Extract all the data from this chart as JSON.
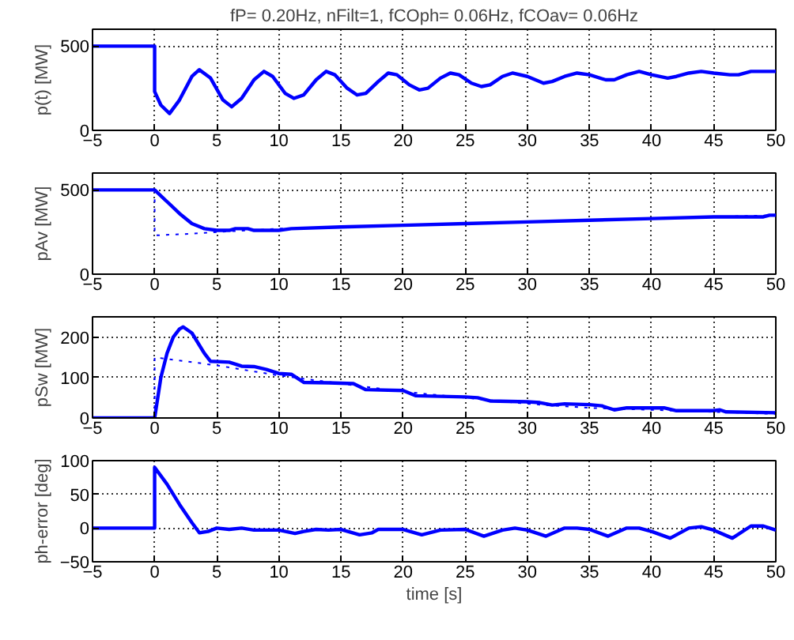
{
  "chart_data": [
    {
      "type": "line",
      "title": "fP= 0.20Hz, nFilt=1, fCOph= 0.06Hz, fCOav= 0.06Hz",
      "ylabel": "p(t) [MW]",
      "xlim": [
        -5,
        50
      ],
      "xticks": [
        -5,
        0,
        5,
        10,
        15,
        20,
        25,
        30,
        35,
        40,
        45,
        50
      ],
      "ylim": [
        0,
        600
      ],
      "yticks": [
        0,
        500
      ],
      "grid": true,
      "series": [
        {
          "color": "#0000ff",
          "line_style": "solid",
          "x": [
            -5,
            0,
            0,
            0.5,
            1.2,
            2,
            3,
            3.6,
            4.5,
            5.5,
            6.2,
            7,
            8,
            8.8,
            9.5,
            10.5,
            11.2,
            12,
            13,
            13.8,
            14.5,
            15.5,
            16.3,
            17,
            18,
            18.8,
            19.5,
            20.5,
            21.3,
            22,
            23,
            23.8,
            24.5,
            25.5,
            26.3,
            27,
            28,
            28.8,
            30,
            31.3,
            32,
            33,
            34,
            35,
            36.3,
            37,
            38,
            39,
            40,
            41.3,
            42,
            43,
            44,
            45,
            46.3,
            47,
            48,
            49,
            50
          ],
          "values": [
            500,
            500,
            230,
            150,
            100,
            180,
            320,
            360,
            310,
            180,
            140,
            190,
            300,
            350,
            320,
            220,
            190,
            210,
            300,
            350,
            330,
            250,
            210,
            220,
            290,
            340,
            330,
            270,
            240,
            250,
            310,
            340,
            330,
            280,
            260,
            270,
            320,
            340,
            320,
            280,
            290,
            320,
            340,
            330,
            300,
            300,
            330,
            350,
            330,
            310,
            320,
            340,
            350,
            340,
            330,
            330,
            350,
            350,
            350
          ]
        }
      ]
    },
    {
      "type": "line",
      "ylabel": "pAv [MW]",
      "xlim": [
        -5,
        50
      ],
      "xticks": [
        -5,
        0,
        5,
        10,
        15,
        20,
        25,
        30,
        35,
        40,
        45,
        50
      ],
      "ylim": [
        0,
        600
      ],
      "yticks": [
        0,
        500
      ],
      "grid": true,
      "series": [
        {
          "color": "#0000ff",
          "line_style": "dotted",
          "x": [
            0,
            0,
            3,
            5,
            10,
            15,
            20,
            25,
            30,
            35,
            40,
            45,
            50
          ],
          "values": [
            500,
            230,
            240,
            250,
            270,
            280,
            290,
            300,
            310,
            320,
            330,
            340,
            350
          ]
        },
        {
          "color": "#0000ff",
          "line_style": "solid",
          "x": [
            -5,
            0,
            1,
            2,
            3,
            4,
            5,
            6,
            6.5,
            7.5,
            8,
            10,
            11,
            15,
            20,
            25,
            30,
            35,
            40,
            45,
            49,
            49.5,
            50
          ],
          "values": [
            500,
            500,
            430,
            360,
            300,
            270,
            260,
            260,
            270,
            270,
            260,
            260,
            270,
            280,
            290,
            300,
            310,
            320,
            330,
            340,
            340,
            350,
            350
          ]
        }
      ]
    },
    {
      "type": "line",
      "ylabel": "pSw [MW]",
      "xlim": [
        -5,
        50
      ],
      "xticks": [
        -5,
        0,
        5,
        10,
        15,
        20,
        25,
        30,
        35,
        40,
        45,
        50
      ],
      "ylim": [
        0,
        250
      ],
      "yticks": [
        0,
        100,
        200
      ],
      "grid": true,
      "series": [
        {
          "color": "#0000ff",
          "line_style": "dotted",
          "x": [
            0,
            0,
            5,
            10,
            15,
            20,
            25,
            30,
            35,
            40,
            45,
            50
          ],
          "values": [
            0,
            150,
            130,
            105,
            85,
            65,
            50,
            35,
            25,
            20,
            15,
            10
          ]
        },
        {
          "color": "#0000ff",
          "line_style": "solid",
          "x": [
            -5,
            0,
            0.5,
            1,
            1.5,
            2,
            2.3,
            3,
            4,
            4.5,
            6,
            7,
            8,
            9,
            10,
            11,
            12,
            14,
            16,
            17,
            20,
            21,
            25,
            26,
            27,
            30,
            31,
            32,
            33,
            35,
            36,
            37,
            38,
            41,
            42,
            45,
            45.5,
            46,
            50
          ],
          "values": [
            0,
            0,
            100,
            160,
            200,
            220,
            225,
            210,
            160,
            140,
            138,
            128,
            127,
            120,
            110,
            108,
            88,
            87,
            85,
            70,
            68,
            55,
            52,
            50,
            42,
            40,
            38,
            32,
            35,
            33,
            30,
            20,
            25,
            25,
            18,
            18,
            20,
            15,
            13
          ]
        }
      ]
    },
    {
      "type": "line",
      "ylabel": "ph-error [deg]",
      "xlabel": "time [s]",
      "xlim": [
        -5,
        50
      ],
      "xticks": [
        -5,
        0,
        5,
        10,
        15,
        20,
        25,
        30,
        35,
        40,
        45,
        50
      ],
      "ylim": [
        -50,
        100
      ],
      "yticks": [
        -50,
        0,
        50,
        100
      ],
      "grid": true,
      "series": [
        {
          "color": "#0000ff",
          "line_style": "solid",
          "x": [
            -5,
            0,
            0,
            1,
            2,
            3,
            3.6,
            4.3,
            5,
            6,
            7,
            8,
            10,
            11.3,
            12,
            13,
            14,
            15,
            16.5,
            17.5,
            18,
            20,
            21.5,
            23,
            25,
            26.5,
            28,
            29,
            30,
            31.5,
            33,
            34,
            35,
            36.5,
            38,
            39,
            40,
            41.5,
            43,
            44,
            45,
            46.5,
            48,
            49,
            50
          ],
          "values": [
            0,
            0,
            90,
            65,
            35,
            8,
            -7,
            -5,
            0,
            -2,
            0,
            -3,
            -3,
            -8,
            -5,
            -2,
            -3,
            -2,
            -10,
            -7,
            -2,
            -2,
            -10,
            -3,
            -2,
            -12,
            -3,
            0,
            -3,
            -12,
            0,
            0,
            -2,
            -12,
            0,
            0,
            -5,
            -15,
            0,
            2,
            -3,
            -15,
            3,
            3,
            -3
          ]
        }
      ]
    }
  ]
}
